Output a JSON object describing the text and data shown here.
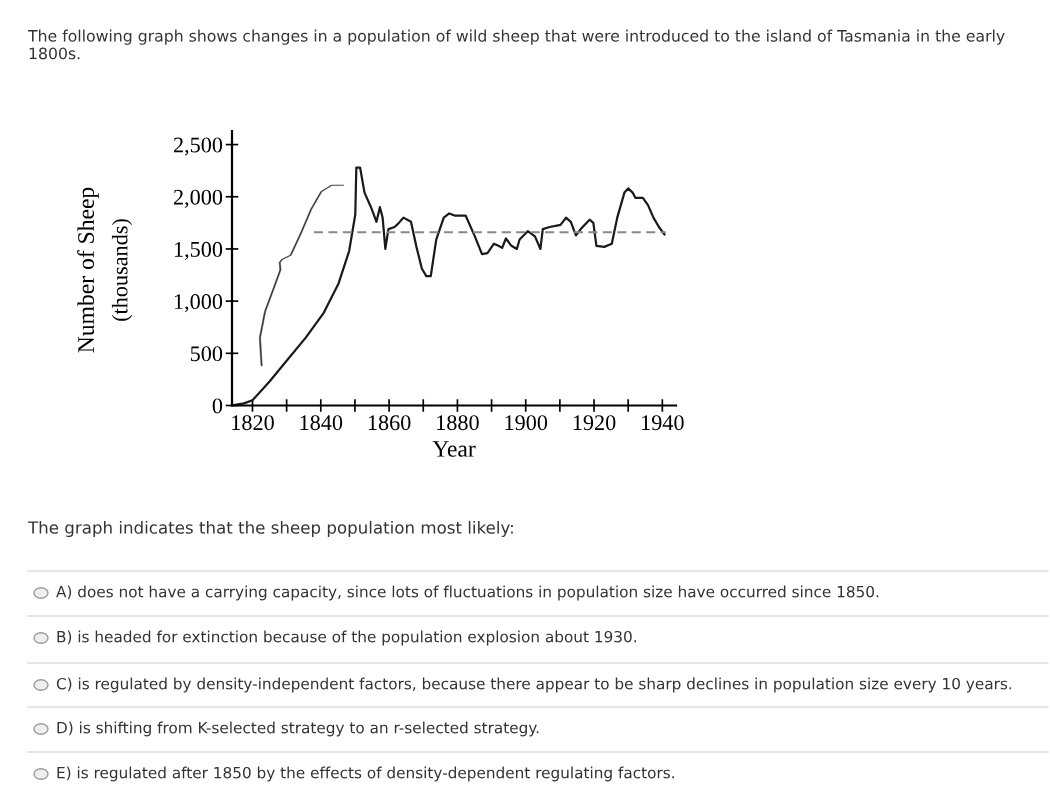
{
  "chart_data": {
    "type": "line",
    "title": "The following graph shows changes in a population of wild sheep that were introduced to the island of Tasmania in the early 1800s.",
    "xlabel": "Year",
    "ylabel": "Number of Sheep\n(thousands)",
    "xlim": [
      1814,
      1944
    ],
    "xticks": [
      1820,
      {
        "value": 1830,
        "label": null
      },
      1840,
      {
        "value": 1850,
        "label": null
      },
      1860,
      {
        "value": 1870,
        "label": null
      },
      1880,
      {
        "value": 1890,
        "label": null
      },
      1900,
      {
        "value": 1910,
        "label": null
      },
      1920,
      {
        "value": 1930,
        "label": null
      },
      1940
    ],
    "ylim": [
      0,
      2630
    ],
    "yticks": [
      0,
      500,
      {
        "value": 1000,
        "label": "1,000"
      },
      {
        "value": 1500,
        "label": "1,500"
      },
      {
        "value": 2000,
        "label": "2,000"
      },
      {
        "value": 2500,
        "label": "2,500"
      }
    ],
    "grid": false,
    "legend": false,
    "series": [
      {
        "color": "#1a1a1a",
        "line_style": "solid",
        "x": [
          1814,
          1817.5,
          1820,
          1825,
          1830.3,
          1835.6,
          1840.9,
          1845.2,
          1848.3,
          1850.1,
          1850.4,
          1851.5,
          1852.8,
          1854.7,
          1856.3,
          1857.3,
          1858.1,
          1858.9,
          1859.8,
          1861.6,
          1862.6,
          1864.2,
          1866.4,
          1868,
          1869.6,
          1870.9,
          1872.2,
          1873.8,
          1876,
          1877.6,
          1879.2,
          1882.4,
          1885.1,
          1887.2,
          1888.8,
          1890.7,
          1892,
          1893.1,
          1894.2,
          1895.8,
          1897.4,
          1898.2,
          1900.6,
          1902.7,
          1904.3,
          1905,
          1907,
          1910.2,
          1911.8,
          1913.2,
          1914.7,
          1916.1,
          1918.7,
          1919.8,
          1920.7,
          1923,
          1925.2,
          1926.8,
          1928.9,
          1930,
          1931.3,
          1932.1,
          1934.3,
          1935.8,
          1937.4,
          1939,
          1940.6
        ],
        "values": [
          0,
          20,
          50,
          230,
          440,
          650,
          890,
          1170,
          1480,
          1830,
          2280,
          2280,
          2040,
          1900,
          1760,
          1900,
          1800,
          1500,
          1690,
          1710,
          1740,
          1800,
          1760,
          1520,
          1310,
          1240,
          1240,
          1590,
          1800,
          1840,
          1820,
          1820,
          1620,
          1450,
          1460,
          1550,
          1530,
          1510,
          1600,
          1530,
          1500,
          1590,
          1670,
          1620,
          1500,
          1690,
          1710,
          1730,
          1800,
          1760,
          1630,
          1690,
          1780,
          1750,
          1530,
          1520,
          1550,
          1800,
          2040,
          2080,
          2040,
          1990,
          1990,
          1920,
          1800,
          1710,
          1640
        ]
      },
      {
        "color": "#888888",
        "line_style": "dashed",
        "x": [
          1838,
          1941
        ],
        "values": [
          1660,
          1660
        ]
      }
    ],
    "annotations": [
      "The graph indicates that the sheep population most likely:",
      "A) does not have a carrying capacity, since lots of fluctuations in population size have occurred since 1850.",
      "B) is headed for extinction because of the population explosion about 1930.",
      "C) is regulated by density-independent factors, because there appear to be sharp declines in population size every 10 years.",
      "D) is shifting from K-selected strategy to an r-selected strategy.",
      "E) is regulated after 1850 by the effects of density-dependent regulating factors."
    ]
  }
}
